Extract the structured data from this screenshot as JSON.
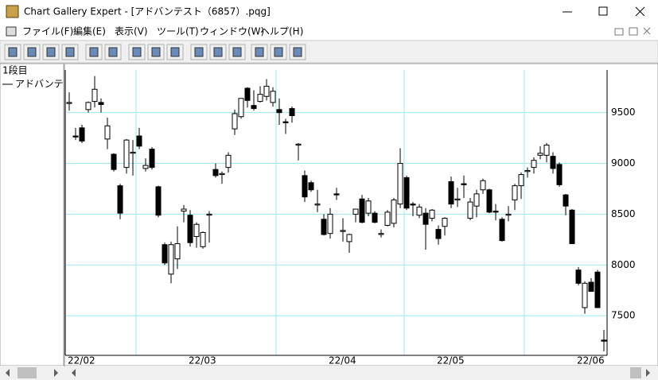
{
  "window": {
    "title": "Chart Gallery Expert - [アドバンテスト（6857）.pqg]",
    "menu": [
      "ファイル(F)",
      "編集(E)",
      "表示(V)",
      "ツール(T)",
      "ウィンドウ(W)",
      "ヘルプ(H)"
    ]
  },
  "panel": {
    "label": "1段目"
  },
  "chart_data": {
    "type": "candlestick",
    "categories": [
      "22/02",
      null,
      null,
      null,
      null,
      null,
      null,
      null,
      null,
      null,
      null,
      null,
      null,
      null,
      null,
      null,
      null,
      null,
      null,
      "22/03",
      null,
      null,
      null,
      null,
      null,
      null,
      null,
      null,
      null,
      null,
      null,
      null,
      null,
      null,
      null,
      null,
      null,
      null,
      null,
      null,
      null,
      "22/04",
      null,
      null,
      null,
      null,
      null,
      null,
      null,
      null,
      null,
      null,
      null,
      null,
      null,
      null,
      null,
      null,
      "22/05",
      null,
      null,
      null,
      null,
      null,
      null,
      null,
      null,
      null,
      null,
      null,
      null,
      null,
      null,
      null,
      null,
      null,
      null,
      null,
      null,
      null,
      "22/06",
      null,
      null,
      null,
      null
    ],
    "series": [
      {
        "name": "アドバンテ",
        "color": "#000000",
        "open": [
          9590,
          9270,
          9350,
          9530,
          9610,
          9600,
          9240,
          9090,
          8780,
          8960,
          9100,
          9270,
          8950,
          9140,
          8770,
          8200,
          7910,
          8060,
          8530,
          8490,
          8280,
          8180,
          8490,
          8940,
          8890,
          8960,
          9340,
          9460,
          9740,
          9570,
          9610,
          9660,
          9600,
          9530,
          9410,
          9540,
          9180,
          8880,
          8810,
          8590,
          8450,
          8310,
          8700,
          8330,
          8230,
          8500,
          8650,
          8510,
          8510,
          8300,
          8390,
          8410,
          8600,
          8860,
          8600,
          8490,
          8510,
          8460,
          8350,
          8380,
          8820,
          8640,
          8800,
          8460,
          8580,
          8740,
          8740,
          8530,
          8450,
          8490,
          8640,
          8780,
          8920,
          8960,
          9080,
          9080,
          9070,
          8990,
          8690,
          8540,
          7950,
          7580,
          7830,
          7930,
          7260
        ],
        "high": [
          9700,
          9350,
          9380,
          9610,
          9860,
          9640,
          9450,
          9100,
          8800,
          9240,
          9230,
          9350,
          9050,
          9160,
          8780,
          8220,
          8230,
          8380,
          8590,
          8540,
          8420,
          8330,
          8530,
          9000,
          8920,
          9110,
          9530,
          9640,
          9750,
          9720,
          9760,
          9830,
          9750,
          9640,
          9440,
          9560,
          9200,
          8930,
          8830,
          8740,
          8500,
          8560,
          8760,
          8460,
          8310,
          8550,
          8690,
          8660,
          8530,
          8350,
          8540,
          8660,
          9150,
          8880,
          8620,
          8600,
          8560,
          8550,
          8390,
          8470,
          8870,
          8760,
          8880,
          8660,
          8740,
          8850,
          8750,
          8600,
          8470,
          8580,
          8800,
          8910,
          8960,
          9060,
          9170,
          9200,
          9110,
          9010,
          8700,
          8550,
          7980,
          7840,
          7870,
          7950,
          7360
        ],
        "low": [
          9520,
          9230,
          9200,
          9500,
          9550,
          9500,
          9140,
          8920,
          8450,
          8900,
          8880,
          9140,
          8920,
          8940,
          8470,
          8000,
          7820,
          7960,
          8420,
          8180,
          8170,
          8160,
          8220,
          8860,
          8800,
          8910,
          9280,
          9440,
          9550,
          9520,
          9600,
          9620,
          9560,
          9380,
          9290,
          9400,
          9030,
          8620,
          8720,
          8520,
          8290,
          8260,
          8640,
          8230,
          8120,
          8420,
          8410,
          8480,
          8410,
          8270,
          8380,
          8370,
          8560,
          8540,
          8480,
          8460,
          8150,
          8430,
          8200,
          8290,
          8560,
          8570,
          8660,
          8440,
          8470,
          8700,
          8510,
          8440,
          8230,
          8430,
          8540,
          8650,
          8860,
          8900,
          9040,
          9010,
          8900,
          8770,
          8490,
          8210,
          7800,
          7520,
          7740,
          7580,
          7150
        ],
        "close": [
          9600,
          9260,
          9220,
          9600,
          9730,
          9580,
          9370,
          8940,
          8510,
          9230,
          9110,
          9170,
          8980,
          8960,
          8490,
          8020,
          8200,
          8210,
          8550,
          8220,
          8400,
          8320,
          8500,
          8880,
          8900,
          9080,
          9490,
          9640,
          9620,
          9540,
          9680,
          9760,
          9710,
          9500,
          9400,
          9470,
          9190,
          8670,
          8740,
          8600,
          8300,
          8500,
          8690,
          8340,
          8300,
          8550,
          8420,
          8630,
          8420,
          8310,
          8520,
          8640,
          9000,
          8560,
          8590,
          8570,
          8400,
          8540,
          8260,
          8460,
          8600,
          8650,
          8790,
          8620,
          8700,
          8830,
          8520,
          8520,
          8240,
          8500,
          8780,
          8890,
          8930,
          9030,
          9100,
          9180,
          8950,
          8790,
          8580,
          8210,
          7820,
          7820,
          7740,
          7580,
          7250
        ]
      }
    ],
    "ylim": [
      7110,
      9920
    ],
    "yticks": [
      7500,
      8000,
      8500,
      9000,
      9500
    ],
    "grid": true
  }
}
